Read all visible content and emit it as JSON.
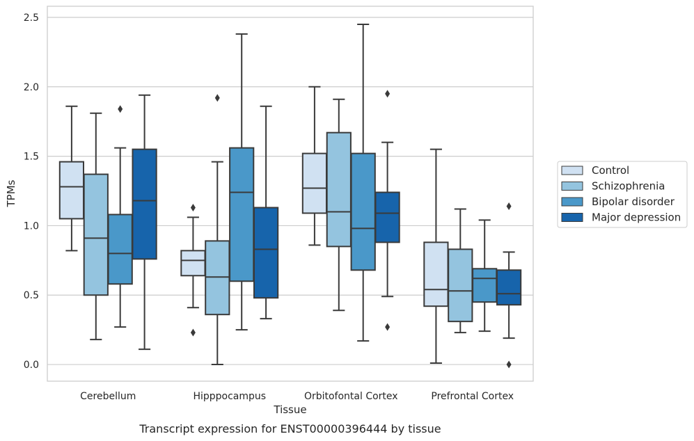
{
  "chart_data": {
    "type": "box",
    "caption": "Transcript expression for ENST00000396444 by tissue",
    "xlabel": "Tissue",
    "ylabel": "TPMs",
    "ylim": [
      -0.12,
      2.58
    ],
    "yticks": [
      "0.0",
      "0.5",
      "1.0",
      "1.5",
      "2.0",
      "2.5"
    ],
    "grid": "horizontal",
    "legend_position": "right",
    "categories": [
      "Cerebellum",
      "Hipppocampus",
      "Orbitofontal Cortex",
      "Prefrontal Cortex"
    ],
    "series": [
      {
        "name": "Control",
        "color": "#d0e1f2",
        "boxes": [
          {
            "min": 0.82,
            "q1": 1.05,
            "median": 1.28,
            "q3": 1.46,
            "max": 1.86,
            "outliers": []
          },
          {
            "min": 0.41,
            "q1": 0.64,
            "median": 0.75,
            "q3": 0.82,
            "max": 1.06,
            "outliers": [
              0.23,
              1.13
            ]
          },
          {
            "min": 0.86,
            "q1": 1.09,
            "median": 1.27,
            "q3": 1.52,
            "max": 2.0,
            "outliers": []
          },
          {
            "min": 0.01,
            "q1": 0.42,
            "median": 0.54,
            "q3": 0.88,
            "max": 1.55,
            "outliers": []
          }
        ]
      },
      {
        "name": "Schizophrenia",
        "color": "#94c4df",
        "boxes": [
          {
            "min": 0.18,
            "q1": 0.5,
            "median": 0.91,
            "q3": 1.37,
            "max": 1.81,
            "outliers": []
          },
          {
            "min": 0.0,
            "q1": 0.36,
            "median": 0.63,
            "q3": 0.89,
            "max": 1.46,
            "outliers": [
              1.92
            ]
          },
          {
            "min": 0.39,
            "q1": 0.85,
            "median": 1.1,
            "q3": 1.67,
            "max": 1.91,
            "outliers": []
          },
          {
            "min": 0.23,
            "q1": 0.31,
            "median": 0.53,
            "q3": 0.83,
            "max": 1.12,
            "outliers": []
          }
        ]
      },
      {
        "name": "Bipolar disorder",
        "color": "#4a98c9",
        "boxes": [
          {
            "min": 0.27,
            "q1": 0.58,
            "median": 0.8,
            "q3": 1.08,
            "max": 1.56,
            "outliers": [
              1.84
            ]
          },
          {
            "min": 0.25,
            "q1": 0.6,
            "median": 1.24,
            "q3": 1.56,
            "max": 2.38,
            "outliers": []
          },
          {
            "min": 0.17,
            "q1": 0.68,
            "median": 0.98,
            "q3": 1.52,
            "max": 2.45,
            "outliers": []
          },
          {
            "min": 0.24,
            "q1": 0.45,
            "median": 0.62,
            "q3": 0.69,
            "max": 1.04,
            "outliers": []
          }
        ]
      },
      {
        "name": "Major depression",
        "color": "#1764ab",
        "boxes": [
          {
            "min": 0.11,
            "q1": 0.76,
            "median": 1.18,
            "q3": 1.55,
            "max": 1.94,
            "outliers": []
          },
          {
            "min": 0.33,
            "q1": 0.48,
            "median": 0.83,
            "q3": 1.13,
            "max": 1.86,
            "outliers": []
          },
          {
            "min": 0.49,
            "q1": 0.88,
            "median": 1.09,
            "q3": 1.24,
            "max": 1.6,
            "outliers": [
              0.27,
              1.95
            ]
          },
          {
            "min": 0.19,
            "q1": 0.43,
            "median": 0.51,
            "q3": 0.68,
            "max": 0.81,
            "outliers": [
              0.0,
              1.14
            ]
          }
        ]
      }
    ]
  }
}
